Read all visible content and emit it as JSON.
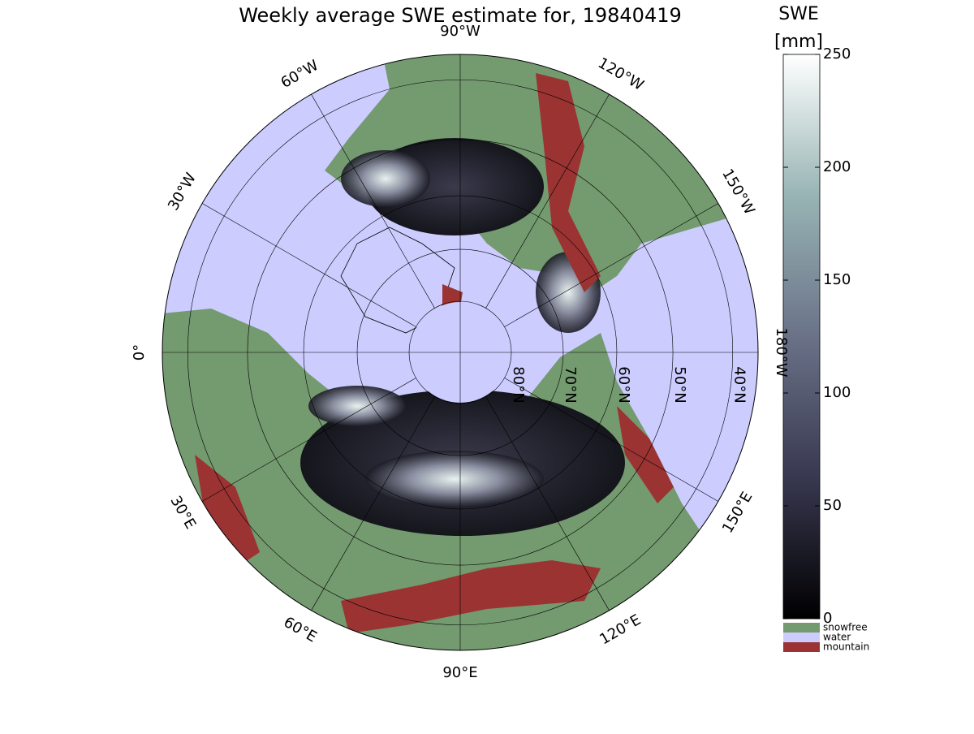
{
  "title": "Weekly average SWE estimate for, 19840419",
  "colorbar": {
    "title": "SWE",
    "unit": "[mm]",
    "lim": [
      0,
      250
    ],
    "ticks": [
      0,
      50,
      100,
      150,
      200,
      250
    ]
  },
  "legend": [
    {
      "name": "snowfree",
      "color": "#749a6f"
    },
    {
      "name": "water",
      "color": "#ccccff"
    },
    {
      "name": "mountain",
      "color": "#9b3333"
    }
  ],
  "meridians": [
    {
      "value": 0,
      "label": "0°"
    },
    {
      "value": -30,
      "label": "30°W"
    },
    {
      "value": -60,
      "label": "60°W"
    },
    {
      "value": -90,
      "label": "90°W"
    },
    {
      "value": -120,
      "label": "120°W"
    },
    {
      "value": -150,
      "label": "150°W"
    },
    {
      "value": 180,
      "label": "180°W"
    },
    {
      "value": 150,
      "label": "150°E"
    },
    {
      "value": 120,
      "label": "120°E"
    },
    {
      "value": 90,
      "label": "90°E"
    },
    {
      "value": 60,
      "label": "60°E"
    },
    {
      "value": 30,
      "label": "30°E"
    }
  ],
  "parallels": [
    {
      "value": 80,
      "label": "80°N"
    },
    {
      "value": 70,
      "label": "70°N"
    },
    {
      "value": 60,
      "label": "60°N"
    },
    {
      "value": 50,
      "label": "50°N"
    },
    {
      "value": 40,
      "label": "40°N"
    }
  ]
}
